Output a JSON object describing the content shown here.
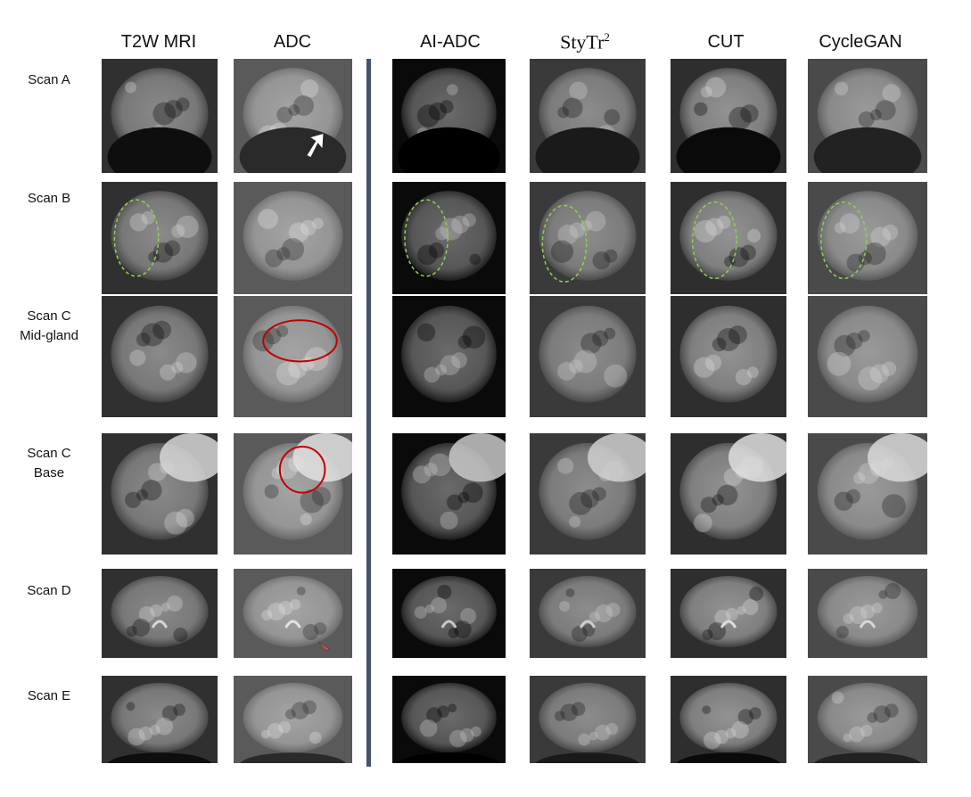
{
  "columns": [
    {
      "key": "t2w",
      "label": "T2W MRI"
    },
    {
      "key": "adc",
      "label": "ADC"
    },
    {
      "key": "aiadc",
      "label": "AI-ADC"
    },
    {
      "key": "stytr",
      "label": "StyTr",
      "sup": "2"
    },
    {
      "key": "cut",
      "label": "CUT"
    },
    {
      "key": "cyclegan",
      "label": "CycleGAN"
    }
  ],
  "rows": [
    {
      "key": "a",
      "label_lines": [
        "Scan A"
      ]
    },
    {
      "key": "b",
      "label_lines": [
        "Scan B"
      ]
    },
    {
      "key": "c_mid",
      "label_lines": [
        "Scan C",
        "Mid-gland"
      ]
    },
    {
      "key": "c_base",
      "label_lines": [
        "Scan C",
        "Base"
      ]
    },
    {
      "key": "d",
      "label_lines": [
        "Scan D"
      ]
    },
    {
      "key": "e",
      "label_lines": [
        "Scan E"
      ]
    }
  ],
  "annotations": {
    "dashed_ellipse_color": "#8fd14f",
    "red_circle_color": "#c00000",
    "arrow_white": "#ffffff",
    "arrow_red": "#c0504d"
  }
}
